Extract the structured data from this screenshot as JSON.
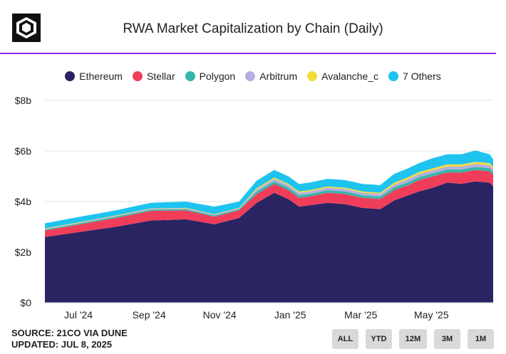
{
  "header": {
    "title": "RWA Market Capitalization by Chain (Daily)",
    "logo_icon": "cube-logo-icon"
  },
  "colors": {
    "accent": "#8a2be2"
  },
  "footer": {
    "source": "SOURCE: 21CO VIA DUNE",
    "updated": "UPDATED: JUL 8, 2025"
  },
  "range_buttons": [
    "ALL",
    "YTD",
    "12M",
    "3M",
    "1M"
  ],
  "chart_data": {
    "type": "area",
    "stacked": true,
    "title": "RWA Market Capitalization by Chain (Daily)",
    "xlabel": "",
    "ylabel": "",
    "ylim": [
      0,
      8
    ],
    "y_unit": "b",
    "y_ticks": [
      "$0",
      "$2b",
      "$4b",
      "$6b",
      "$8b"
    ],
    "y_tick_values": [
      0,
      2,
      4,
      6,
      8
    ],
    "x_range": [
      0,
      12.7
    ],
    "x_ticks": [
      "Jul '24",
      "Sep '24",
      "Nov '24",
      "Jan '25",
      "Mar '25",
      "May '25"
    ],
    "x_tick_values": [
      0.95,
      2.95,
      4.95,
      6.95,
      8.95,
      10.95
    ],
    "x": [
      0,
      1,
      2,
      3,
      4,
      4.8,
      5.5,
      6,
      6.5,
      6.9,
      7.2,
      7.5,
      8,
      8.5,
      9,
      9.5,
      9.9,
      10.3,
      10.6,
      11,
      11.4,
      11.8,
      12.2,
      12.6,
      12.7
    ],
    "series": [
      {
        "name": "Ethereum",
        "color": "#2b2463",
        "values": [
          2.6,
          2.8,
          3.0,
          3.25,
          3.3,
          3.1,
          3.35,
          3.95,
          4.35,
          4.1,
          3.8,
          3.85,
          3.95,
          3.9,
          3.75,
          3.7,
          4.05,
          4.25,
          4.4,
          4.55,
          4.75,
          4.7,
          4.8,
          4.75,
          4.6
        ]
      },
      {
        "name": "Stellar",
        "color": "#f03e5a",
        "values": [
          0.25,
          0.3,
          0.35,
          0.38,
          0.35,
          0.3,
          0.3,
          0.35,
          0.35,
          0.35,
          0.35,
          0.35,
          0.4,
          0.4,
          0.4,
          0.4,
          0.4,
          0.4,
          0.45,
          0.45,
          0.4,
          0.45,
          0.45,
          0.45,
          0.45
        ]
      },
      {
        "name": "Polygon",
        "color": "#36b6a8",
        "values": [
          0.04,
          0.04,
          0.05,
          0.05,
          0.05,
          0.05,
          0.05,
          0.1,
          0.1,
          0.1,
          0.1,
          0.1,
          0.1,
          0.1,
          0.1,
          0.1,
          0.12,
          0.12,
          0.12,
          0.12,
          0.12,
          0.12,
          0.12,
          0.12,
          0.12
        ]
      },
      {
        "name": "Arbitrum",
        "color": "#b5aee0",
        "values": [
          0.03,
          0.03,
          0.03,
          0.03,
          0.03,
          0.03,
          0.03,
          0.08,
          0.1,
          0.1,
          0.1,
          0.1,
          0.1,
          0.1,
          0.1,
          0.1,
          0.1,
          0.12,
          0.12,
          0.12,
          0.12,
          0.12,
          0.12,
          0.12,
          0.12
        ]
      },
      {
        "name": "Avalanche_c",
        "color": "#f5dc3c",
        "values": [
          0.02,
          0.02,
          0.02,
          0.02,
          0.02,
          0.02,
          0.02,
          0.05,
          0.05,
          0.05,
          0.05,
          0.05,
          0.05,
          0.05,
          0.05,
          0.05,
          0.08,
          0.08,
          0.08,
          0.08,
          0.08,
          0.08,
          0.08,
          0.08,
          0.08
        ]
      },
      {
        "name": "7 Others",
        "color": "#1ec3ef",
        "values": [
          0.2,
          0.21,
          0.2,
          0.22,
          0.25,
          0.3,
          0.25,
          0.3,
          0.3,
          0.3,
          0.3,
          0.3,
          0.3,
          0.3,
          0.3,
          0.3,
          0.35,
          0.35,
          0.35,
          0.4,
          0.4,
          0.4,
          0.45,
          0.35,
          0.3
        ]
      }
    ]
  }
}
